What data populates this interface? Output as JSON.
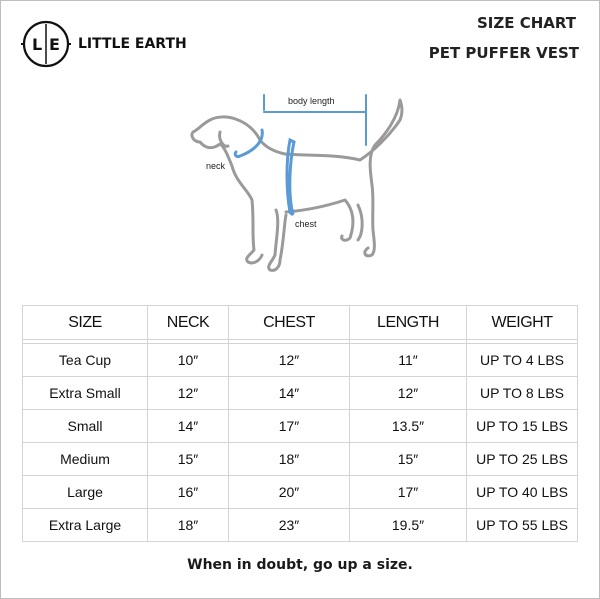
{
  "brand": {
    "name": "LITTLE EARTH",
    "logo_letters": "L|E"
  },
  "header": {
    "title": "SIZE CHART",
    "subtitle": "PET PUFFER VEST"
  },
  "diagram": {
    "labels": {
      "body_length": "body length",
      "neck": "neck",
      "chest": "chest"
    },
    "accent_color": "#5b9bd5",
    "outline_color": "#9a9a9a"
  },
  "table": {
    "headers": [
      "SIZE",
      "NECK",
      "CHEST",
      "LENGTH",
      "WEIGHT"
    ],
    "rows": [
      [
        "Tea Cup",
        "10″",
        "12″",
        "11″",
        "UP TO 4 LBS"
      ],
      [
        "Extra Small",
        "12″",
        "14″",
        "12″",
        "UP TO 8 LBS"
      ],
      [
        "Small",
        "14″",
        "17″",
        "13.5″",
        "UP TO  15 LBS"
      ],
      [
        "Medium",
        "15″",
        "18″",
        "15″",
        "UP TO 25 LBS"
      ],
      [
        "Large",
        "16″",
        "20″",
        "17″",
        "UP TO 40 LBS"
      ],
      [
        "Extra Large",
        "18″",
        "23″",
        "19.5″",
        "UP TO 55 LBS"
      ]
    ]
  },
  "footer": {
    "note": "When in doubt, go up a size."
  }
}
